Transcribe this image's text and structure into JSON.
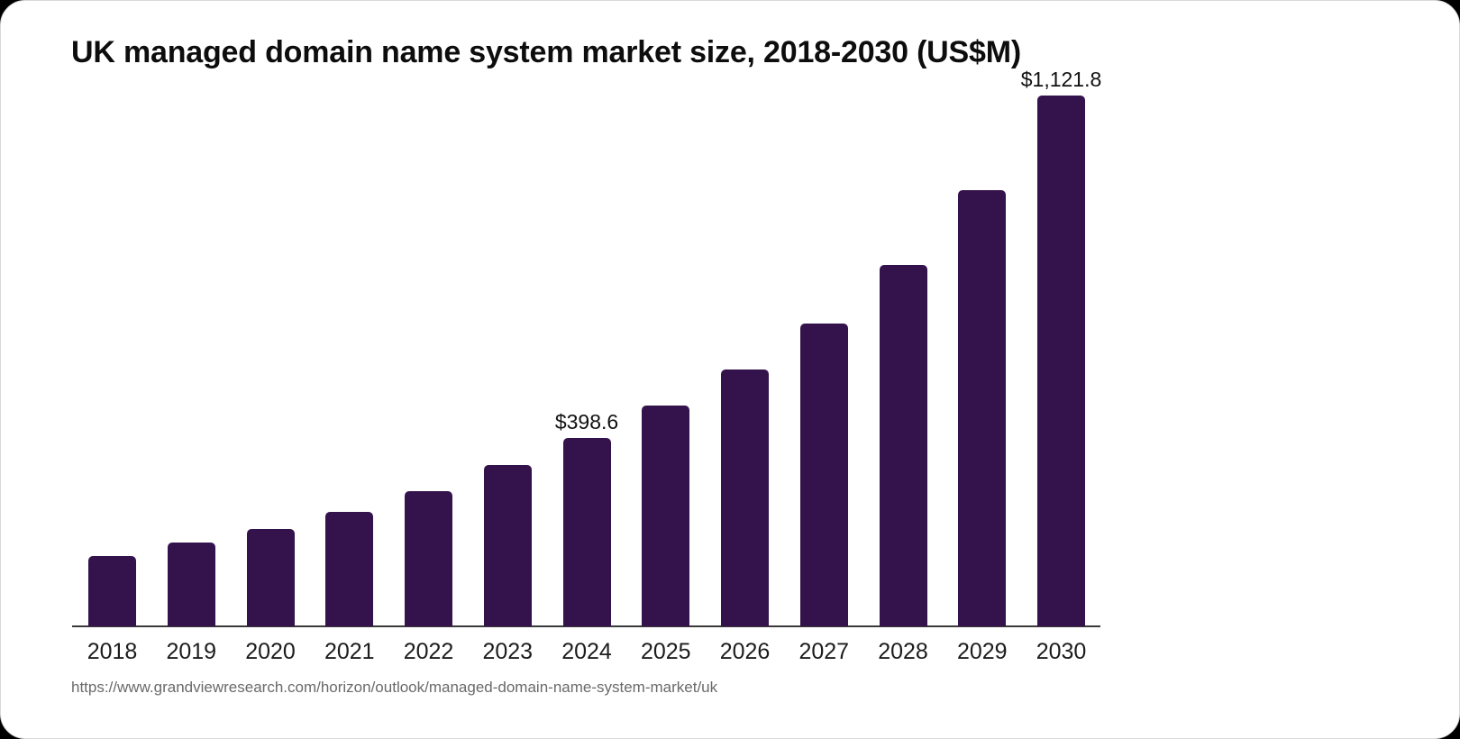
{
  "chart_data": {
    "type": "bar",
    "title": "UK managed domain name system market size, 2018-2030 (US$M)",
    "categories": [
      "2018",
      "2019",
      "2020",
      "2021",
      "2022",
      "2023",
      "2024",
      "2025",
      "2026",
      "2027",
      "2028",
      "2029",
      "2030"
    ],
    "values": [
      149.4,
      176.2,
      205.0,
      241.5,
      286.0,
      341.0,
      398.6,
      466.2,
      542.8,
      640.0,
      764.5,
      921.0,
      1121.8
    ],
    "value_labels": [
      "",
      "",
      "",
      "",
      "",
      "",
      "$398.6",
      "",
      "",
      "",
      "",
      "",
      "$1,121.8"
    ],
    "xlabel": "",
    "ylabel": "",
    "ylim": [
      0,
      1180
    ],
    "grid": false,
    "legend": false,
    "bar_color": "#34124b",
    "axis_line_color": "#3a3a3a"
  },
  "footer": {
    "source_url": "https://www.grandviewresearch.com/horizon/outlook/managed-domain-name-system-market/uk"
  }
}
